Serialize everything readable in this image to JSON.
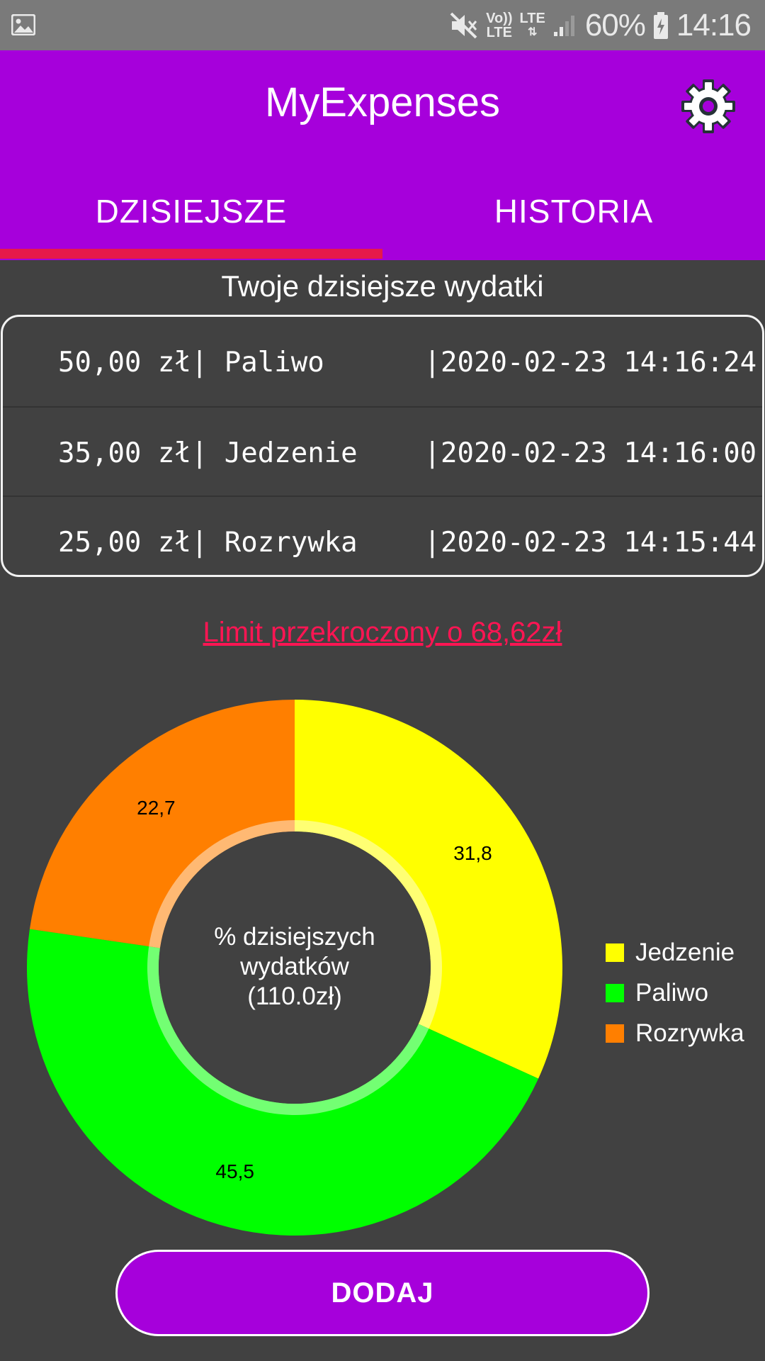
{
  "status_bar": {
    "battery_percent": "60%",
    "time": "14:16",
    "volte_label_top": "Vo))",
    "volte_label_bottom": "LTE",
    "lte_label": "LTE"
  },
  "app": {
    "title": "MyExpenses",
    "tabs": [
      {
        "label": "DZISIEJSZE",
        "selected": true
      },
      {
        "label": "HISTORIA",
        "selected": false
      }
    ],
    "accent_color": "#a600db",
    "indicator_color": "#e6194b"
  },
  "today": {
    "section_title": "Twoje dzisiejsze wydatki",
    "expenses": [
      {
        "text": "50,00 zł| Paliwo      |2020-02-23 14:16:24"
      },
      {
        "text": "35,00 zł| Jedzenie    |2020-02-23 14:16:00"
      },
      {
        "text": "25,00 zł| Rozrywka    |2020-02-23 14:15:44"
      }
    ],
    "limit_warning": "Limit przekroczony o  68,62zł",
    "add_button": "DODAJ"
  },
  "chart_data": {
    "type": "pie",
    "donut": true,
    "center_text": [
      "% dzisiejszych",
      "wydatków",
      "(110.0zł)"
    ],
    "categories": [
      "Jedzenie",
      "Paliwo",
      "Rozrywka"
    ],
    "values": [
      31.8,
      45.5,
      22.7
    ],
    "value_labels": [
      "31,8",
      "45,5",
      "22,7"
    ],
    "colors": [
      "#ffff00",
      "#00ff00",
      "#ff7f00"
    ],
    "legend_position": "right"
  }
}
